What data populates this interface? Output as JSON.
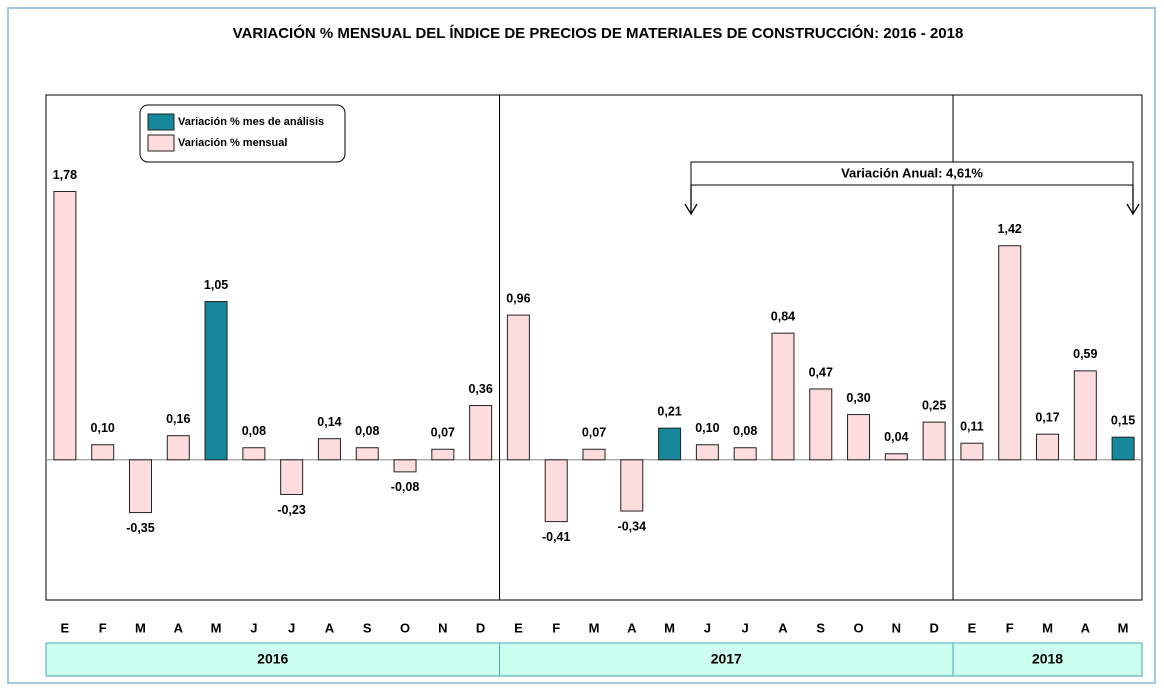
{
  "chart_data": {
    "type": "bar",
    "title": "VARIACIÓN % MENSUAL DEL ÍNDICE DE PRECIOS DE MATERIALES DE CONSTRUCCIÓN:  2016 - 2018",
    "ylim": [
      -0.93,
      2.42
    ],
    "legend": [
      {
        "name": "Variación % mes de análisis",
        "color": "#17879c"
      },
      {
        "name": "Variación % mensual",
        "color": "#fcdcdc"
      }
    ],
    "annotation": "Variación Anual: 4,61%",
    "groups": [
      {
        "name": "2016",
        "categories": [
          "E",
          "F",
          "M",
          "A",
          "M",
          "J",
          "J",
          "A",
          "S",
          "O",
          "N",
          "D"
        ],
        "values": [
          1.78,
          0.1,
          -0.35,
          0.16,
          1.05,
          0.08,
          -0.23,
          0.14,
          0.08,
          -0.08,
          0.07,
          0.36
        ],
        "value_labels": [
          "1,78",
          "0,10",
          "-0,35",
          "0,16",
          "1,05",
          "0,08",
          "-0,23",
          "0,14",
          "0,08",
          "-0,08",
          "0,07",
          "0,36"
        ],
        "colors": [
          "#fcdcdc",
          "#fcdcdc",
          "#fcdcdc",
          "#fcdcdc",
          "#17879c",
          "#fcdcdc",
          "#fcdcdc",
          "#fcdcdc",
          "#fcdcdc",
          "#fcdcdc",
          "#fcdcdc",
          "#fcdcdc"
        ]
      },
      {
        "name": "2017",
        "categories": [
          "E",
          "F",
          "M",
          "A",
          "M",
          "J",
          "J",
          "A",
          "S",
          "O",
          "N",
          "D"
        ],
        "values": [
          0.96,
          -0.41,
          0.07,
          -0.34,
          0.21,
          0.1,
          0.08,
          0.84,
          0.47,
          0.3,
          0.04,
          0.25
        ],
        "value_labels": [
          "0,96",
          "-0,41",
          "0,07",
          "-0,34",
          "0,21",
          "0,10",
          "0,08",
          "0,84",
          "0,47",
          "0,30",
          "0,04",
          "0,25"
        ],
        "colors": [
          "#fcdcdc",
          "#fcdcdc",
          "#fcdcdc",
          "#fcdcdc",
          "#17879c",
          "#fcdcdc",
          "#fcdcdc",
          "#fcdcdc",
          "#fcdcdc",
          "#fcdcdc",
          "#fcdcdc",
          "#fcdcdc"
        ]
      },
      {
        "name": "2018",
        "categories": [
          "E",
          "F",
          "M",
          "A",
          "M"
        ],
        "values": [
          0.11,
          1.42,
          0.17,
          0.59,
          0.15
        ],
        "value_labels": [
          "0,11",
          "1,42",
          "0,17",
          "0,59",
          "0,15"
        ],
        "colors": [
          "#fcdcdc",
          "#fcdcdc",
          "#fcdcdc",
          "#fcdcdc",
          "#17879c"
        ]
      }
    ]
  }
}
